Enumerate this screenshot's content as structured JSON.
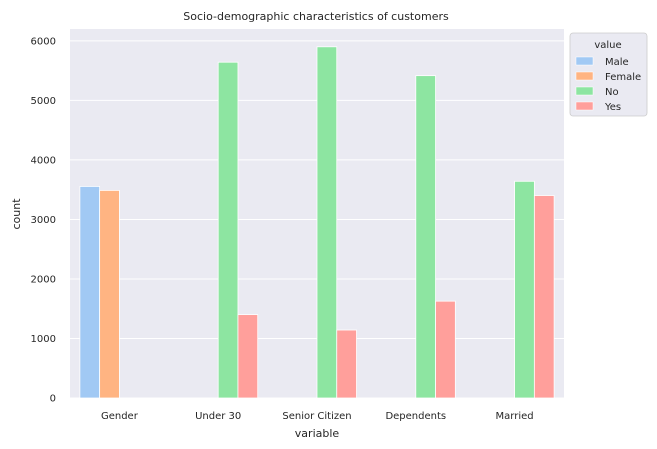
{
  "chart_data": {
    "type": "bar",
    "title": "Socio-demographic characteristics of customers",
    "xlabel": "variable",
    "ylabel": "count",
    "categories": [
      "Gender",
      "Under 30",
      "Senior Citizen",
      "Dependents",
      "Married"
    ],
    "series": [
      {
        "name": "Male",
        "color": "#a1c9f4",
        "values": [
          3555,
          null,
          null,
          null,
          null
        ]
      },
      {
        "name": "Female",
        "color": "#ffb482",
        "values": [
          3488,
          null,
          null,
          null,
          null
        ]
      },
      {
        "name": "No",
        "color": "#8de5a1",
        "values": [
          null,
          5642,
          5901,
          5416,
          3641
        ]
      },
      {
        "name": "Yes",
        "color": "#ff9f9b",
        "values": [
          null,
          1401,
          1142,
          1627,
          3402
        ]
      }
    ],
    "ylim": [
      0,
      6200
    ],
    "yticks": [
      0,
      1000,
      2000,
      3000,
      4000,
      5000,
      6000
    ],
    "grid": true,
    "legend": {
      "title": "value",
      "placement": "outside top-right"
    },
    "background_color": "#eaeaf2"
  }
}
